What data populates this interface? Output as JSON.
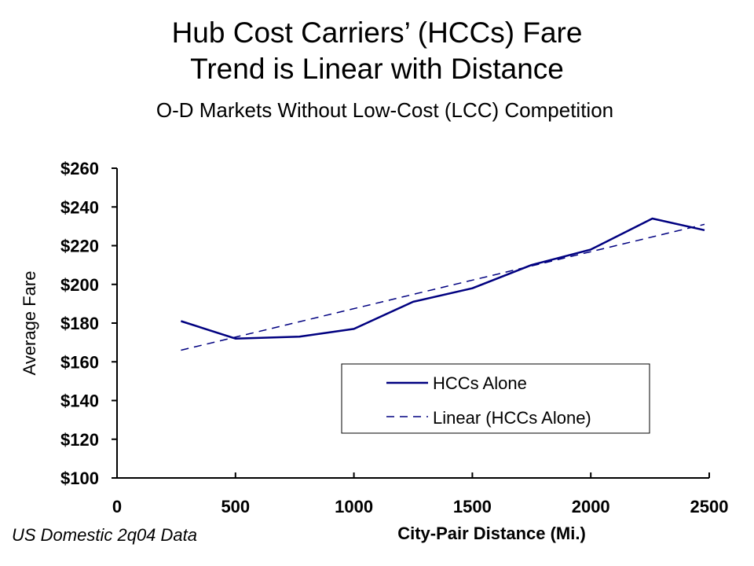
{
  "header": {
    "title_line1": "Hub Cost Carriers’ (HCCs) Fare",
    "title_line2": "Trend is Linear with Distance",
    "subtitle": "O-D Markets Without Low-Cost (LCC) Competition"
  },
  "footnote": "US Domestic 2q04 Data",
  "colors": {
    "series": "#000080",
    "axis": "#000000"
  },
  "chart_data": {
    "type": "line",
    "title": "",
    "xlabel": "City-Pair Distance (Mi.)",
    "ylabel": "Average Fare",
    "xlim": [
      0,
      2500
    ],
    "ylim": [
      100,
      260
    ],
    "x_ticks": [
      0,
      500,
      1000,
      1500,
      2000,
      2500
    ],
    "x_tick_labels": [
      "0",
      "500",
      "1000",
      "1500",
      "2000",
      "2500"
    ],
    "y_ticks": [
      100,
      120,
      140,
      160,
      180,
      200,
      220,
      240,
      260
    ],
    "y_tick_labels": [
      "$100",
      "$120",
      "$140",
      "$160",
      "$180",
      "$200",
      "$220",
      "$240",
      "$260"
    ],
    "grid": false,
    "legend_position": "lower-right",
    "series": [
      {
        "name": "HCCs Alone",
        "style": "solid",
        "x": [
          270,
          500,
          770,
          1000,
          1250,
          1500,
          1750,
          2000,
          2260,
          2480
        ],
        "y": [
          181,
          172,
          173,
          177,
          191,
          198,
          210,
          218,
          234,
          228
        ]
      },
      {
        "name": "Linear (HCCs Alone)",
        "style": "dashed",
        "x": [
          270,
          2480
        ],
        "y": [
          166,
          231
        ]
      }
    ]
  }
}
